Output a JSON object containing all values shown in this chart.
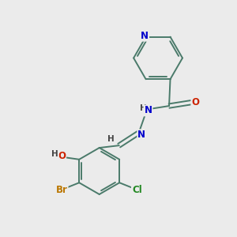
{
  "background_color": "#ebebeb",
  "bond_color": "#4a7a6a",
  "atom_colors": {
    "N": "#0000cc",
    "O": "#cc2200",
    "Br": "#bb7700",
    "Cl": "#228822",
    "H": "#444444",
    "C": "#4a7a6a"
  },
  "figsize": [
    3.0,
    3.0
  ],
  "dpi": 100,
  "bond_lw": 1.4,
  "font_size": 8.5,
  "xlim": [
    0,
    10
  ],
  "ylim": [
    0,
    10
  ]
}
